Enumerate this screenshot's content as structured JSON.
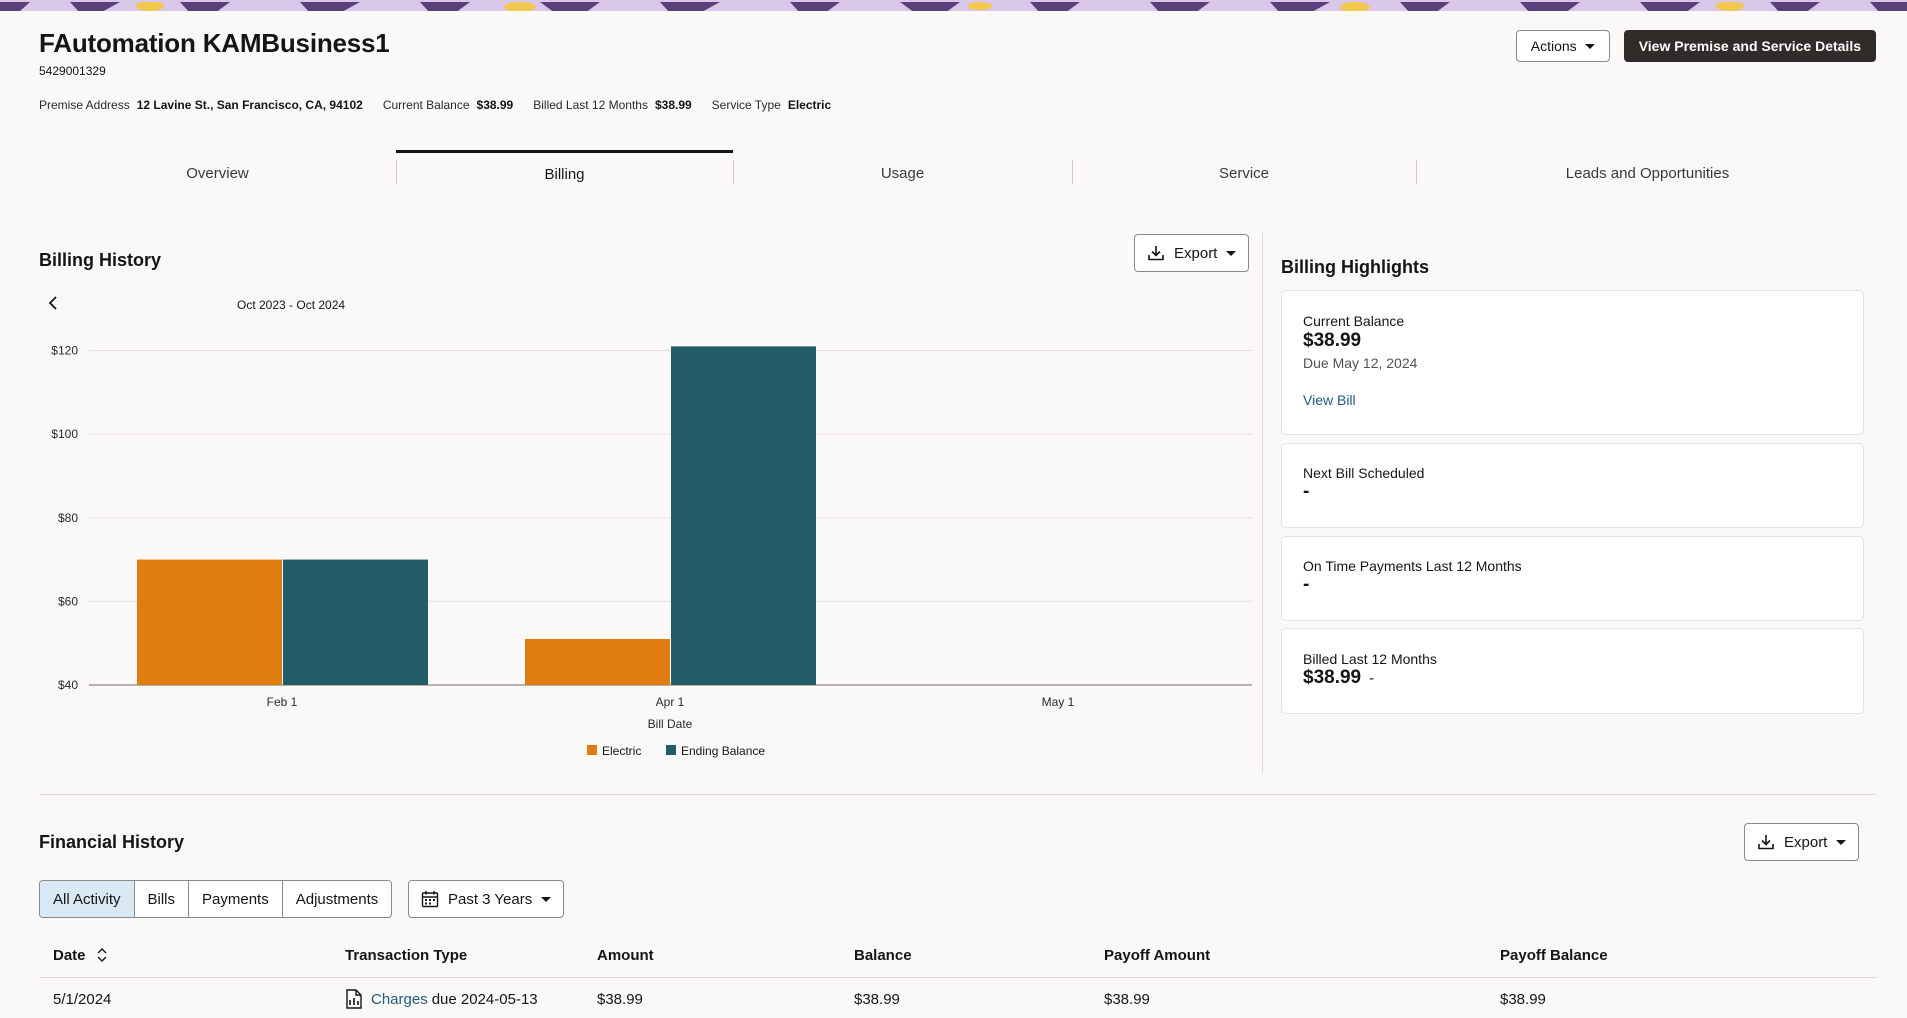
{
  "account": {
    "name": "FAutomation KAMBusiness1",
    "number": "5429001329",
    "premise_address_label": "Premise Address",
    "premise_address": "12 Lavine St., San Francisco, CA, 94102",
    "current_balance_label": "Current Balance",
    "current_balance": "$38.99",
    "billed_label": "Billed Last 12 Months",
    "billed_value": "$38.99",
    "service_type_label": "Service Type",
    "service_type": "Electric"
  },
  "header_actions": {
    "actions_label": "Actions",
    "view_details_label": "View Premise and Service Details"
  },
  "tabs": [
    {
      "label": "Overview",
      "active": false
    },
    {
      "label": "Billing",
      "active": true
    },
    {
      "label": "Usage",
      "active": false
    },
    {
      "label": "Service",
      "active": false
    },
    {
      "label": "Leads and Opportunities",
      "active": false
    }
  ],
  "billing_history": {
    "title": "Billing History",
    "export_label": "Export",
    "date_range": "Oct 2023 - Oct 2024"
  },
  "chart_data": {
    "type": "bar",
    "categories": [
      "Feb 1",
      "Apr 1",
      "May 1"
    ],
    "series": [
      {
        "name": "Electric",
        "color": "#df7d13",
        "values": [
          70,
          51,
          null
        ]
      },
      {
        "name": "Ending Balance",
        "color": "#225c66",
        "values": [
          70,
          121,
          null
        ]
      }
    ],
    "xlabel": "Bill Date",
    "ylabel": "",
    "y_ticks": [
      "$40",
      "$60",
      "$80",
      "$100",
      "$120"
    ],
    "ylim": [
      40,
      123
    ],
    "grid": true,
    "legend": "bottom"
  },
  "highlights": {
    "title": "Billing Highlights",
    "current_balance_label": "Current Balance",
    "current_balance_value": "$38.99",
    "due_text": "Due May 12, 2024",
    "view_bill_label": "View Bill",
    "next_bill_label": "Next Bill Scheduled",
    "next_bill_value": "-",
    "on_time_label": "On Time Payments Last 12 Months",
    "on_time_value": "-",
    "billed_label": "Billed Last 12 Months",
    "billed_value": "$38.99",
    "billed_suffix": "-"
  },
  "financial_history": {
    "title": "Financial History",
    "export_label": "Export",
    "filters": [
      "All Activity",
      "Bills",
      "Payments",
      "Adjustments"
    ],
    "active_filter": "All Activity",
    "period_label": "Past 3 Years",
    "columns": [
      "Date",
      "Transaction Type",
      "Amount",
      "Balance",
      "Payoff Amount",
      "Payoff Balance"
    ],
    "rows": [
      {
        "date": "5/1/2024",
        "type_link": "Charges",
        "type_rest": "due 2024-05-13",
        "amount": "$38.99",
        "balance": "$38.99",
        "payoff_amount": "$38.99",
        "payoff_balance": "$38.99"
      }
    ]
  },
  "colors": {
    "electric": "#df7d13",
    "ending_balance": "#225c66",
    "link": "#1f5b7e",
    "dark_button": "#2f2c2a"
  }
}
